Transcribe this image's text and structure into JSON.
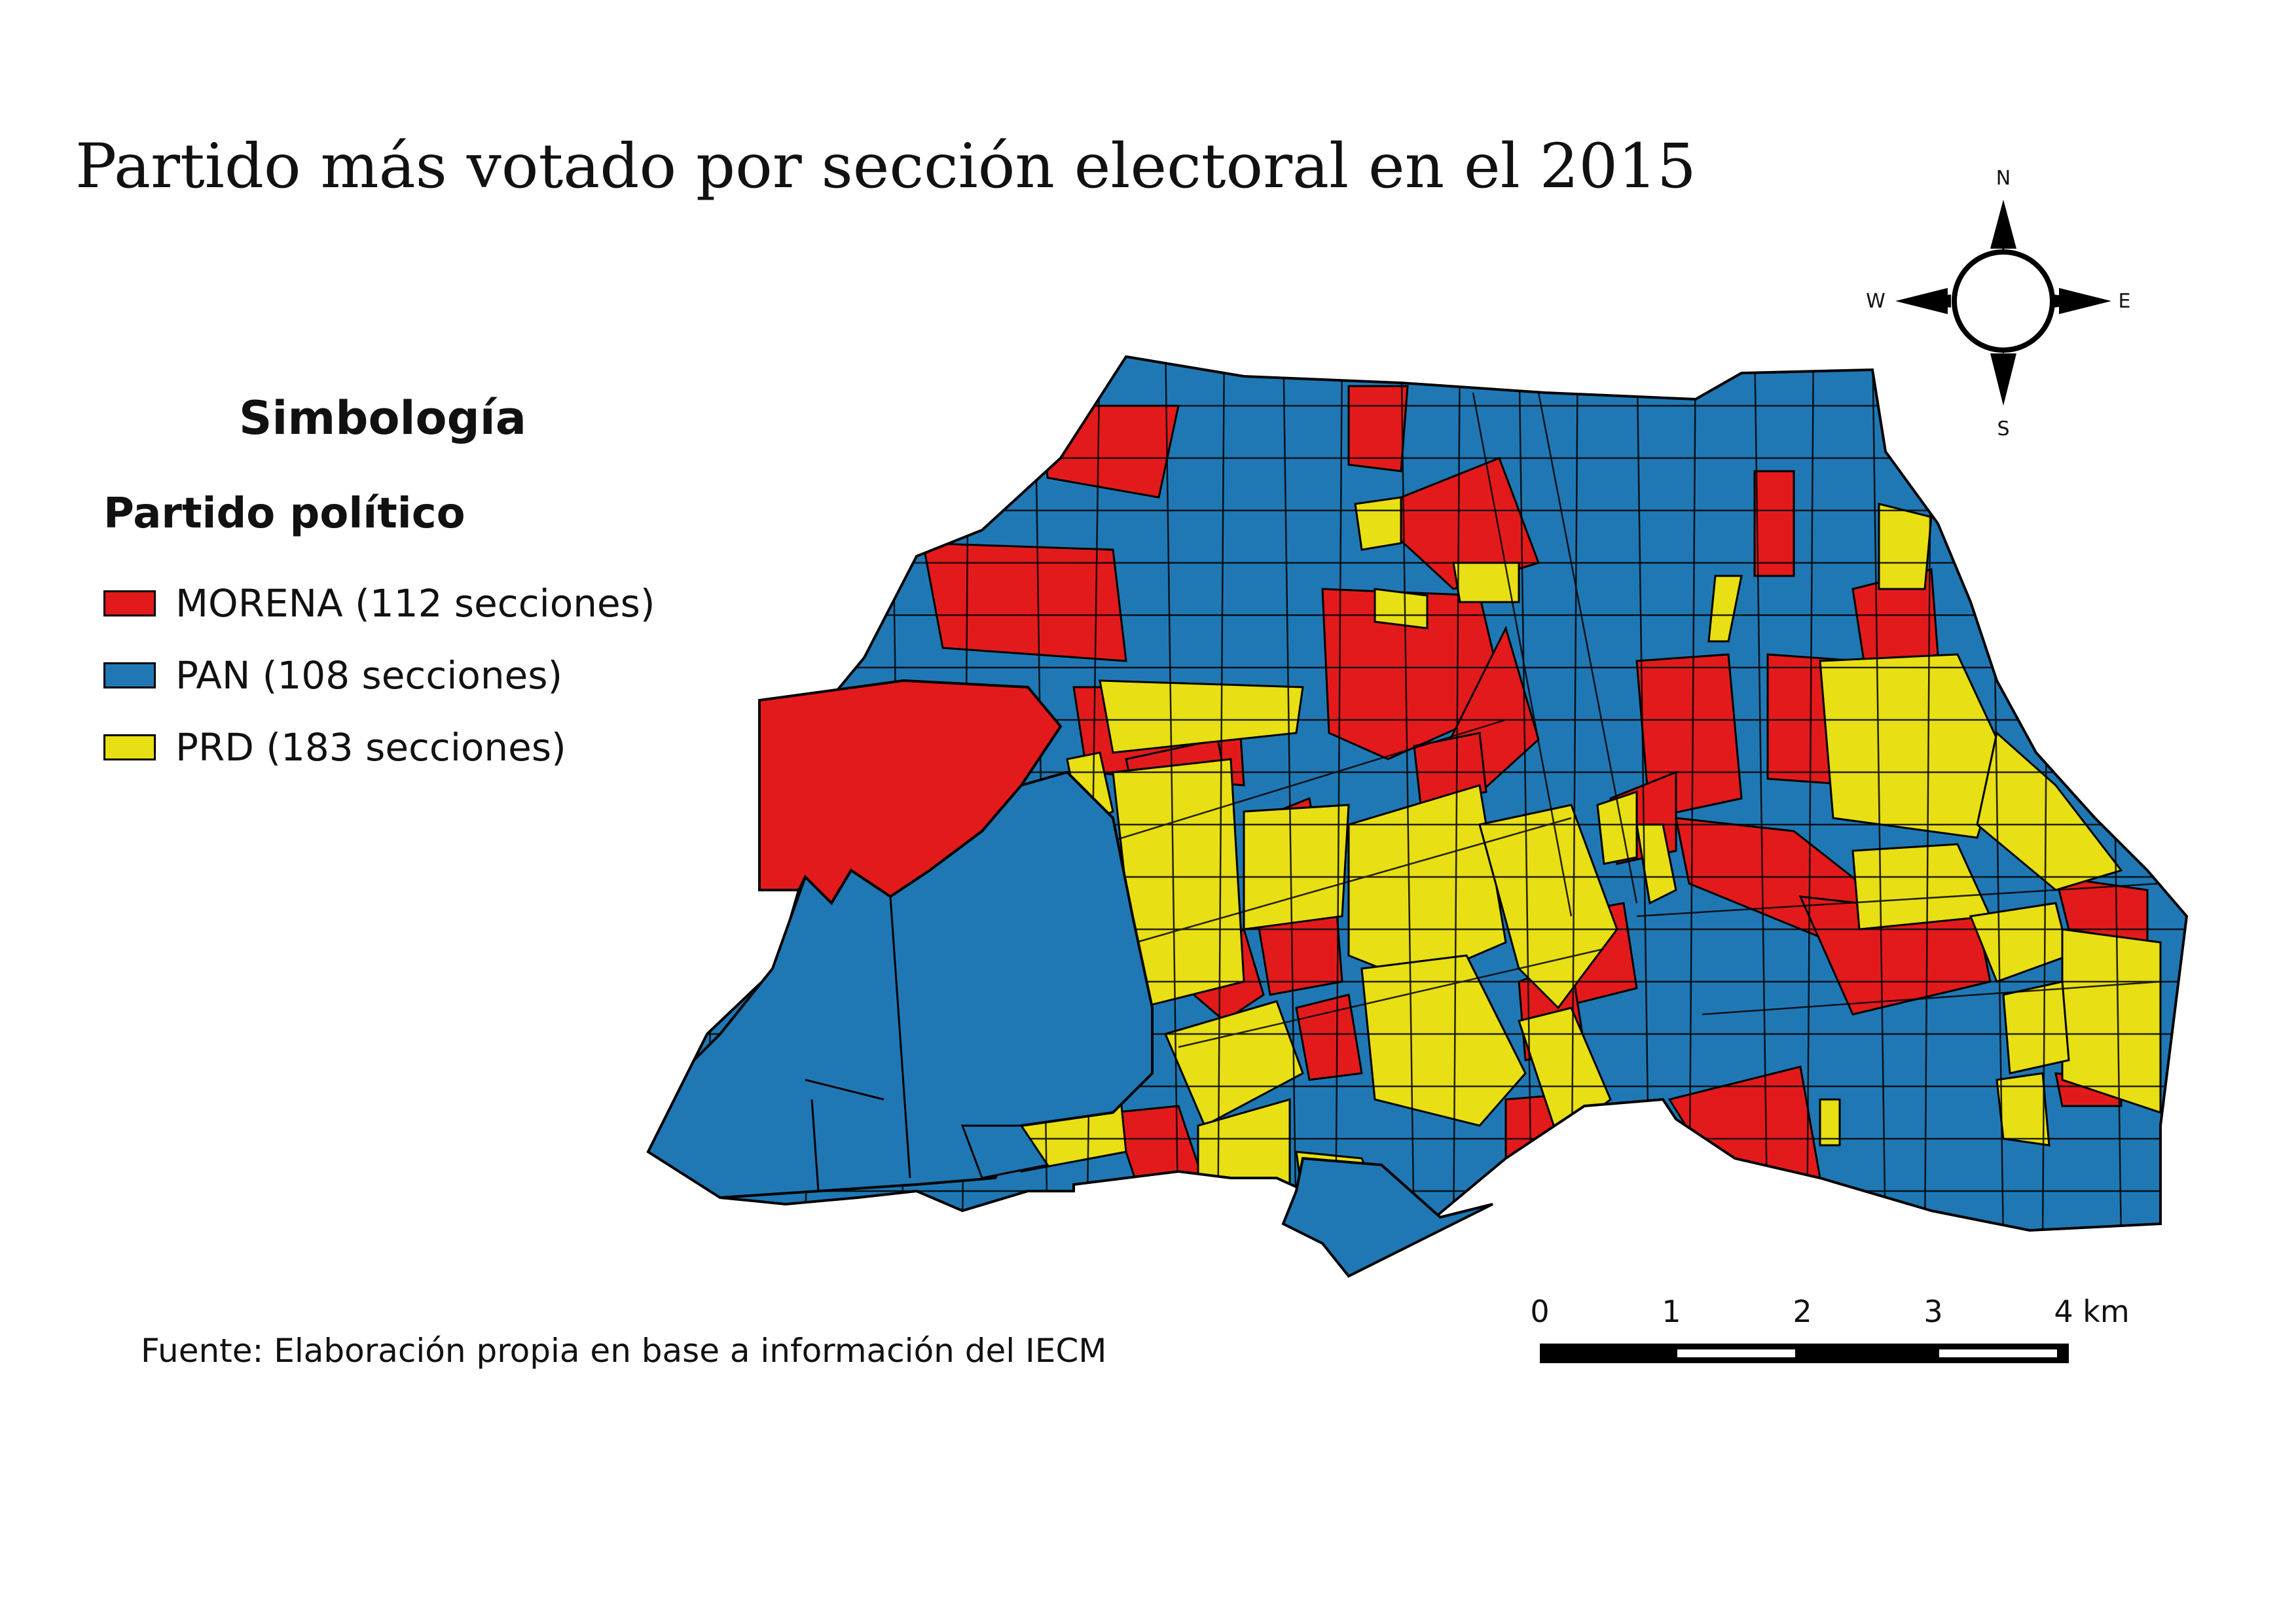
{
  "map": {
    "title": "Partido más votado por sección electoral en el 2015",
    "source": "Fuente: Elaboración propia en base a información del IECM"
  },
  "legend": {
    "title": "Simbología",
    "subtitle": "Partido político",
    "items": [
      {
        "label": "MORENA (112 secciones)",
        "color": "#e31a1c",
        "party": "MORENA",
        "sections": 112
      },
      {
        "label": "PAN (108 secciones)",
        "color": "#1f78b4",
        "party": "PAN",
        "sections": 108
      },
      {
        "label": "PRD (183 secciones)",
        "color": "#e8df14",
        "party": "PRD",
        "sections": 183
      }
    ]
  },
  "compass": {
    "n": "N",
    "s": "S",
    "e": "E",
    "w": "W"
  },
  "scale_bar": {
    "ticks": [
      "0",
      "1",
      "2",
      "3",
      "4 km"
    ]
  },
  "colors": {
    "morena": "#e31a1c",
    "pan": "#1f78b4",
    "prd": "#e8df14",
    "outline": "#000000"
  }
}
